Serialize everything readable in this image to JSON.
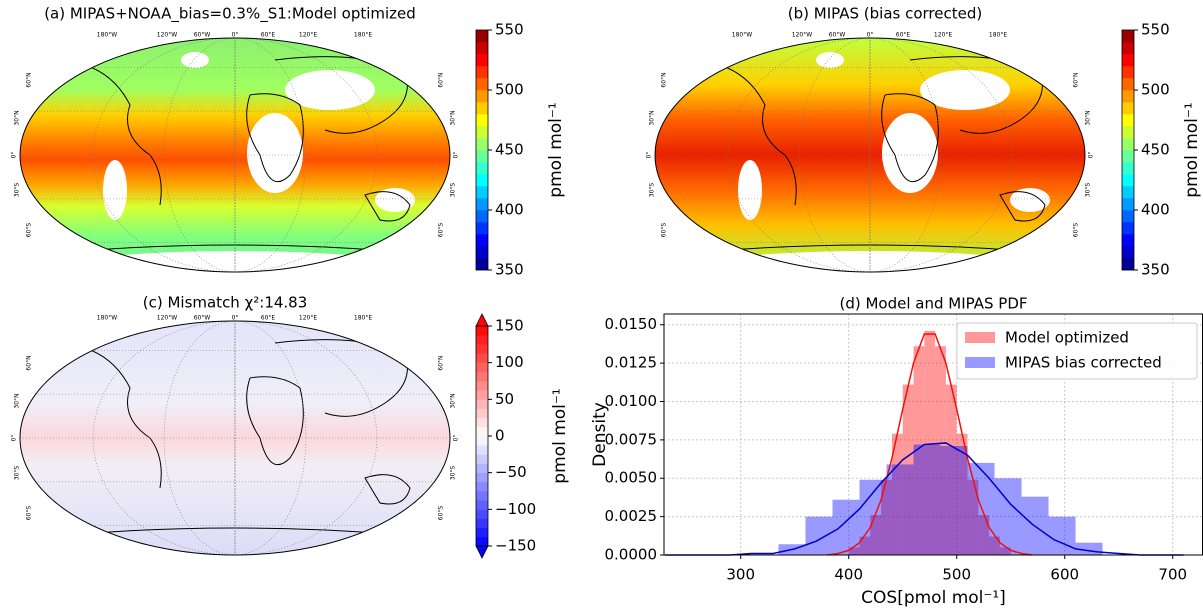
{
  "chart_data": [
    {
      "type": "map",
      "title": "(a) MIPAS+NOAA_bias=0.3%_S1:Model optimized",
      "lon_labels": [
        "180°W",
        "120°W",
        "60°W",
        "0°",
        "60°E",
        "120°E",
        "180°E"
      ],
      "lat_labels": [
        "60°N",
        "30°N",
        "0°",
        "30°S",
        "60°S"
      ],
      "colorbar_label": "pmol mol⁻¹",
      "clim": [
        350,
        550
      ],
      "cticks": [
        350,
        400,
        450,
        500,
        550
      ],
      "colormap": "jet"
    },
    {
      "type": "map",
      "title": "(b) MIPAS (bias corrected)",
      "lon_labels": [
        "180°W",
        "120°W",
        "60°W",
        "0°",
        "60°E",
        "120°E",
        "180°E"
      ],
      "lat_labels": [
        "60°N",
        "30°N",
        "0°",
        "30°S",
        "60°S"
      ],
      "colorbar_label": "pmol mol⁻¹",
      "clim": [
        350,
        550
      ],
      "cticks": [
        350,
        400,
        450,
        500,
        550
      ],
      "colormap": "jet"
    },
    {
      "type": "map",
      "title": "(c) Mismatch χ²:14.83",
      "lon_labels": [
        "180°W",
        "120°W",
        "60°W",
        "0°",
        "60°E",
        "120°E",
        "180°E"
      ],
      "lat_labels": [
        "60°N",
        "30°N",
        "0°",
        "30°S",
        "60°S"
      ],
      "colorbar_label": "pmol mol⁻¹",
      "clim": [
        -150,
        150
      ],
      "cticks": [
        {
          "value": -150,
          "label": "−150"
        },
        {
          "value": -100,
          "label": "−100"
        },
        {
          "value": -50,
          "label": "−50"
        },
        0,
        50,
        100,
        150
      ],
      "colormap": "bwr"
    },
    {
      "type": "histogram",
      "title": "(d) Model and MIPAS PDF",
      "x_label": "COS[pmol mol⁻¹]",
      "y_label": "Density",
      "xlim": [
        229,
        728
      ],
      "xticks": [
        300,
        400,
        500,
        600,
        700
      ],
      "ylim": [
        0,
        0.0157
      ],
      "yticks": [
        {
          "value": 0,
          "label": "0.0000"
        },
        {
          "value": 0.0025,
          "label": "0.0025"
        },
        {
          "value": 0.005,
          "label": "0.0050"
        },
        {
          "value": 0.0075,
          "label": "0.0075"
        },
        {
          "value": 0.01,
          "label": "0.0100"
        },
        {
          "value": 0.0125,
          "label": "0.0125"
        },
        {
          "value": 0.015,
          "label": "0.0150"
        }
      ],
      "grid": true,
      "legend": "upper right",
      "series": [
        {
          "name": "Model optimized",
          "color": "#ff0000",
          "line_color": "#ee1111",
          "bins": [
            400,
            410,
            420,
            430,
            440,
            450,
            460,
            470,
            480,
            490,
            500,
            510,
            520,
            530,
            540,
            550
          ],
          "values": [
            0.0005,
            0.0012,
            0.0026,
            0.0049,
            0.0079,
            0.0111,
            0.0136,
            0.0146,
            0.0136,
            0.0111,
            0.0079,
            0.0049,
            0.0026,
            0.0012,
            0.0005
          ],
          "line_x": [
            380,
            390,
            400,
            410,
            420,
            430,
            440,
            450,
            460,
            470,
            480,
            490,
            500,
            510,
            520,
            530,
            540,
            550,
            560,
            570
          ],
          "line_values": [
            0.0,
            0.0001,
            0.0003,
            0.0008,
            0.0018,
            0.0036,
            0.0063,
            0.0095,
            0.0125,
            0.0144,
            0.0144,
            0.0125,
            0.0095,
            0.0063,
            0.0036,
            0.0018,
            0.0008,
            0.0003,
            0.0001,
            0.0
          ]
        },
        {
          "name": "MIPAS bias corrected",
          "color": "#0000ff",
          "line_color": "#0000cc",
          "bins": [
            335,
            360,
            385,
            410,
            435,
            460,
            485,
            510,
            535,
            560,
            585,
            610,
            635
          ],
          "values": [
            0.0007,
            0.0025,
            0.0036,
            0.0049,
            0.0059,
            0.0072,
            0.0071,
            0.006,
            0.005,
            0.0038,
            0.0025,
            0.0008
          ],
          "line_x": [
            230,
            250,
            270,
            290,
            310,
            330,
            350,
            370,
            390,
            410,
            430,
            450,
            470,
            490,
            510,
            530,
            550,
            570,
            590,
            610,
            630,
            650,
            670,
            690,
            710
          ],
          "line_values": [
            0.0,
            0.0,
            0.0,
            0.0,
            0.0001,
            0.0001,
            0.0004,
            0.0009,
            0.0017,
            0.003,
            0.0047,
            0.0062,
            0.0072,
            0.0073,
            0.0065,
            0.005,
            0.0033,
            0.002,
            0.001,
            0.0004,
            0.0002,
            0.0001,
            0.0,
            0.0,
            0.0
          ]
        }
      ]
    }
  ]
}
